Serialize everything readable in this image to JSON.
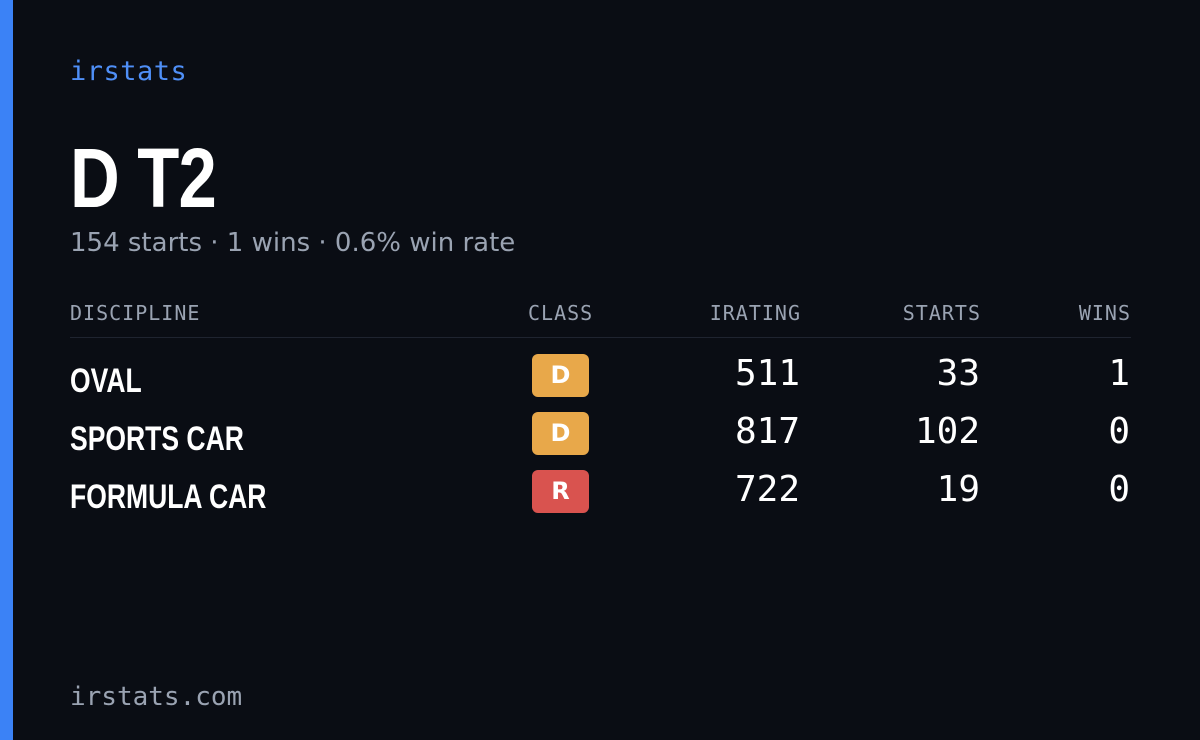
{
  "brand": "irstats",
  "title": "D T2",
  "subtitle": {
    "starts": "154 starts",
    "wins": "1 wins",
    "win_rate": "0.6% win rate",
    "separator": " · "
  },
  "table": {
    "headers": {
      "discipline": "DISCIPLINE",
      "class": "CLASS",
      "irating": "IRATING",
      "starts": "STARTS",
      "wins": "WINS"
    },
    "rows": [
      {
        "discipline": "OVAL",
        "class": "D",
        "class_color": "#e8a84a",
        "irating": "511",
        "starts": "33",
        "wins": "1"
      },
      {
        "discipline": "SPORTS CAR",
        "class": "D",
        "class_color": "#e8a84a",
        "irating": "817",
        "starts": "102",
        "wins": "0"
      },
      {
        "discipline": "FORMULA CAR",
        "class": "R",
        "class_color": "#d9534f",
        "irating": "722",
        "starts": "19",
        "wins": "0"
      }
    ]
  },
  "footer": "irstats.com",
  "colors": {
    "background": "#0a0d14",
    "accent": "#3b82f6",
    "brand": "#4f8ff7",
    "muted": "#9aa3b2",
    "class_d": "#e8a84a",
    "class_r": "#d9534f"
  }
}
